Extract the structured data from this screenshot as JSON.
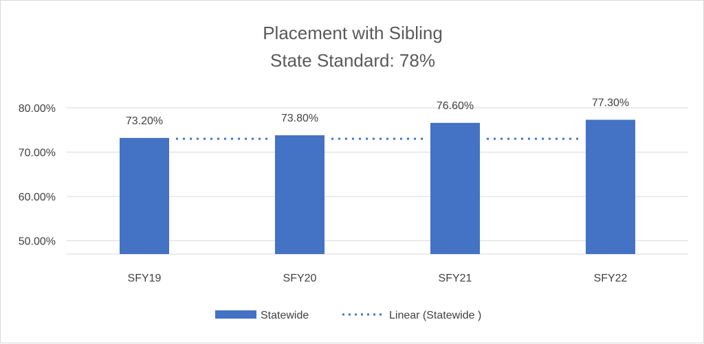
{
  "chart_data": {
    "type": "bar",
    "title": "Placement with Sibling",
    "subtitle": "State Standard: 78%",
    "categories": [
      "SFY19",
      "SFY20",
      "SFY21",
      "SFY22"
    ],
    "series": [
      {
        "name": "Statewide",
        "values": [
          73.2,
          73.8,
          76.6,
          77.3
        ],
        "color": "#4472c4"
      }
    ],
    "data_labels": [
      "73.20%",
      "73.80%",
      "76.60%",
      "77.30%"
    ],
    "trendline": {
      "name": "Linear (Statewide )",
      "style": "dotted",
      "color": "#4472c4",
      "value": 73.0
    },
    "yticks": [
      50,
      60,
      70,
      80
    ],
    "ytick_labels": [
      "50.00%",
      "60.00%",
      "70.00%",
      "80.00%"
    ],
    "ylim": [
      47,
      80
    ],
    "grid": true,
    "legend_position": "bottom",
    "gridline_color": "#d9d9d9"
  }
}
